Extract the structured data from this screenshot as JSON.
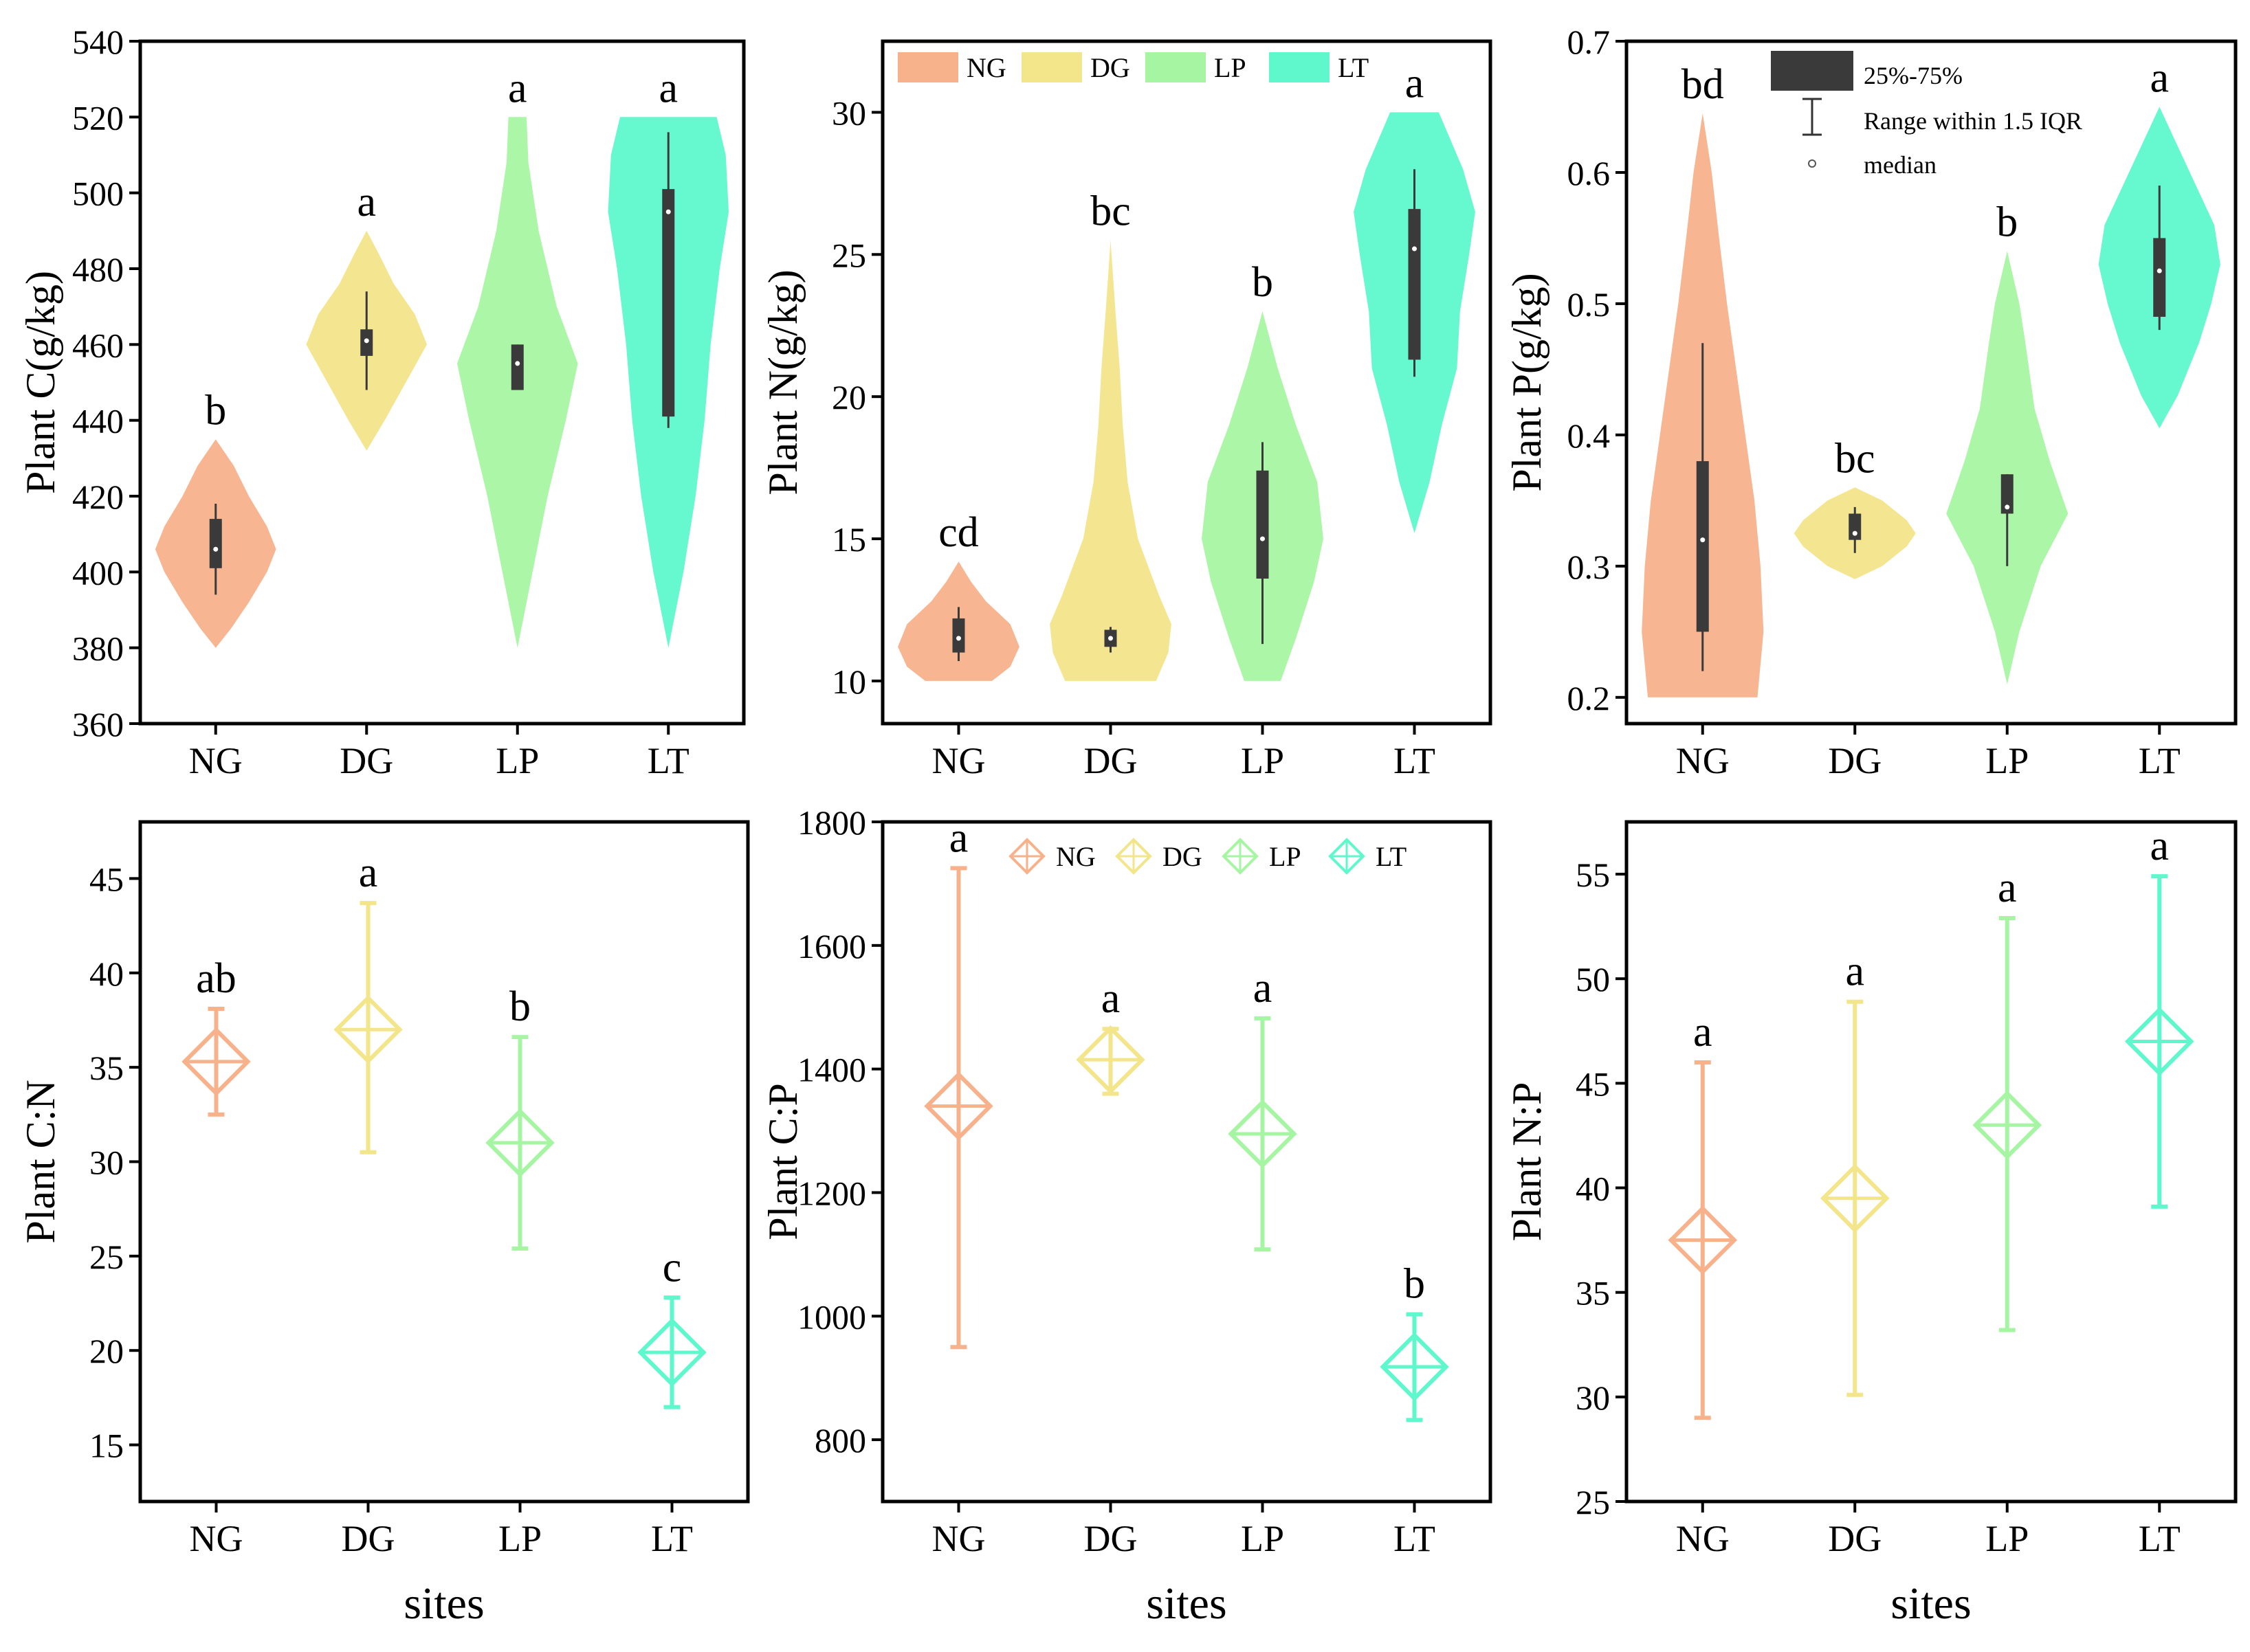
{
  "colors": {
    "NG": "#f7b28b",
    "DG": "#f3e58a",
    "LP": "#a6f5a2",
    "LT": "#5ef8cc",
    "box": "#3a3a3a"
  },
  "chart_data": [
    {
      "id": "plant-c",
      "type": "violin",
      "ylabel": "Plant C(g/kg)",
      "xlabel": "",
      "categories": [
        "NG",
        "DG",
        "LP",
        "LT"
      ],
      "ylim": [
        360,
        540
      ],
      "yticks": [
        360,
        380,
        400,
        420,
        440,
        460,
        480,
        500,
        520,
        540
      ],
      "series": [
        {
          "name": "NG",
          "min": 380,
          "max": 435,
          "q1": 401,
          "q3": 414,
          "median": 406,
          "whisker_low": 394,
          "whisker_high": 418,
          "letter": "b",
          "density": [
            [
              380,
              0
            ],
            [
              385,
              0.25
            ],
            [
              392,
              0.55
            ],
            [
              400,
              0.85
            ],
            [
              406,
              1
            ],
            [
              412,
              0.85
            ],
            [
              420,
              0.55
            ],
            [
              428,
              0.3
            ],
            [
              435,
              0
            ]
          ]
        },
        {
          "name": "DG",
          "min": 432,
          "max": 490,
          "q1": 457,
          "q3": 464,
          "median": 461,
          "whisker_low": 448,
          "whisker_high": 474,
          "letter": "a",
          "density": [
            [
              432,
              0
            ],
            [
              440,
              0.3
            ],
            [
              450,
              0.65
            ],
            [
              460,
              1
            ],
            [
              468,
              0.8
            ],
            [
              476,
              0.45
            ],
            [
              484,
              0.2
            ],
            [
              490,
              0
            ]
          ]
        },
        {
          "name": "LP",
          "min": 380,
          "max": 520,
          "q1": 448,
          "q3": 460,
          "median": 455,
          "whisker_low": 448,
          "whisker_high": 460,
          "letter": "a",
          "density": [
            [
              380,
              0
            ],
            [
              400,
              0.25
            ],
            [
              420,
              0.5
            ],
            [
              440,
              0.8
            ],
            [
              455,
              1
            ],
            [
              470,
              0.65
            ],
            [
              490,
              0.35
            ],
            [
              508,
              0.18
            ],
            [
              520,
              0.15
            ]
          ]
        },
        {
          "name": "LT",
          "min": 380,
          "max": 520,
          "q1": 441,
          "q3": 501,
          "median": 495,
          "whisker_low": 438,
          "whisker_high": 516,
          "letter": "a",
          "density": [
            [
              380,
              0
            ],
            [
              400,
              0.25
            ],
            [
              420,
              0.45
            ],
            [
              440,
              0.6
            ],
            [
              460,
              0.7
            ],
            [
              480,
              0.85
            ],
            [
              495,
              1
            ],
            [
              510,
              0.95
            ],
            [
              520,
              0.8
            ]
          ]
        }
      ]
    },
    {
      "id": "plant-n",
      "type": "violin",
      "ylabel": "Plant N(g/kg)",
      "xlabel": "",
      "categories": [
        "NG",
        "DG",
        "LP",
        "LT"
      ],
      "ylim": [
        8.5,
        32.5
      ],
      "yticks": [
        10,
        15,
        20,
        25,
        30
      ],
      "legend": [
        "NG",
        "DG",
        "LP",
        "LT"
      ],
      "series": [
        {
          "name": "NG",
          "min": 10,
          "max": 14.2,
          "q1": 11.0,
          "q3": 12.2,
          "median": 11.5,
          "whisker_low": 10.7,
          "whisker_high": 12.6,
          "letter": "cd",
          "density": [
            [
              10,
              0.55
            ],
            [
              10.5,
              0.85
            ],
            [
              11.2,
              1
            ],
            [
              12,
              0.85
            ],
            [
              12.8,
              0.45
            ],
            [
              13.5,
              0.2
            ],
            [
              14.2,
              0
            ]
          ]
        },
        {
          "name": "DG",
          "min": 10,
          "max": 25.5,
          "q1": 11.2,
          "q3": 11.8,
          "median": 11.5,
          "whisker_low": 11.0,
          "whisker_high": 11.9,
          "letter": "bc",
          "density": [
            [
              10,
              0.75
            ],
            [
              11,
              0.95
            ],
            [
              12,
              1
            ],
            [
              13,
              0.8
            ],
            [
              15,
              0.45
            ],
            [
              17,
              0.28
            ],
            [
              19,
              0.2
            ],
            [
              21,
              0.15
            ],
            [
              23,
              0.08
            ],
            [
              25.5,
              0
            ]
          ]
        },
        {
          "name": "LP",
          "min": 10,
          "max": 23,
          "q1": 13.6,
          "q3": 17.4,
          "median": 15,
          "whisker_low": 11.3,
          "whisker_high": 18.4,
          "letter": "b",
          "density": [
            [
              10,
              0.3
            ],
            [
              11.5,
              0.55
            ],
            [
              13.5,
              0.85
            ],
            [
              15,
              1
            ],
            [
              17,
              0.9
            ],
            [
              19,
              0.55
            ],
            [
              21,
              0.25
            ],
            [
              23,
              0
            ]
          ]
        },
        {
          "name": "LT",
          "min": 15.2,
          "max": 30,
          "q1": 21.3,
          "q3": 26.6,
          "median": 25.2,
          "whisker_low": 20.7,
          "whisker_high": 28.0,
          "letter": "a",
          "density": [
            [
              15.2,
              0
            ],
            [
              17,
              0.25
            ],
            [
              19,
              0.45
            ],
            [
              21,
              0.7
            ],
            [
              23,
              0.75
            ],
            [
              25,
              0.9
            ],
            [
              26.5,
              1
            ],
            [
              28,
              0.8
            ],
            [
              29.5,
              0.5
            ],
            [
              30,
              0.4
            ]
          ]
        }
      ]
    },
    {
      "id": "plant-p",
      "type": "violin",
      "ylabel": "Plant P(g/kg)",
      "xlabel": "",
      "categories": [
        "NG",
        "DG",
        "LP",
        "LT"
      ],
      "ylim": [
        0.18,
        0.7
      ],
      "yticks": [
        0.2,
        0.3,
        0.4,
        0.5,
        0.6,
        0.7
      ],
      "legend_items": [
        "25%-75%",
        "Range within 1.5 IQR",
        "median"
      ],
      "series": [
        {
          "name": "NG",
          "min": 0.2,
          "max": 0.645,
          "q1": 0.25,
          "q3": 0.38,
          "median": 0.32,
          "whisker_low": 0.22,
          "whisker_high": 0.47,
          "letter": "bd",
          "density": [
            [
              0.2,
              0.9
            ],
            [
              0.25,
              1
            ],
            [
              0.3,
              0.95
            ],
            [
              0.35,
              0.85
            ],
            [
              0.4,
              0.7
            ],
            [
              0.45,
              0.55
            ],
            [
              0.5,
              0.4
            ],
            [
              0.55,
              0.27
            ],
            [
              0.6,
              0.15
            ],
            [
              0.645,
              0
            ]
          ]
        },
        {
          "name": "DG",
          "min": 0.29,
          "max": 0.36,
          "q1": 0.32,
          "q3": 0.34,
          "median": 0.325,
          "whisker_low": 0.31,
          "whisker_high": 0.345,
          "letter": "bc",
          "density": [
            [
              0.29,
              0
            ],
            [
              0.3,
              0.45
            ],
            [
              0.315,
              0.85
            ],
            [
              0.325,
              1
            ],
            [
              0.335,
              0.85
            ],
            [
              0.35,
              0.45
            ],
            [
              0.36,
              0
            ]
          ]
        },
        {
          "name": "LP",
          "min": 0.21,
          "max": 0.54,
          "q1": 0.34,
          "q3": 0.37,
          "median": 0.345,
          "whisker_low": 0.3,
          "whisker_high": 0.37,
          "letter": "b",
          "density": [
            [
              0.21,
              0
            ],
            [
              0.25,
              0.2
            ],
            [
              0.3,
              0.55
            ],
            [
              0.34,
              1
            ],
            [
              0.38,
              0.7
            ],
            [
              0.42,
              0.45
            ],
            [
              0.47,
              0.3
            ],
            [
              0.5,
              0.2
            ],
            [
              0.54,
              0
            ]
          ]
        },
        {
          "name": "LT",
          "min": 0.405,
          "max": 0.65,
          "q1": 0.49,
          "q3": 0.55,
          "median": 0.525,
          "whisker_low": 0.48,
          "whisker_high": 0.59,
          "letter": "a",
          "density": [
            [
              0.405,
              0
            ],
            [
              0.43,
              0.3
            ],
            [
              0.47,
              0.65
            ],
            [
              0.5,
              0.85
            ],
            [
              0.53,
              1
            ],
            [
              0.56,
              0.9
            ],
            [
              0.59,
              0.6
            ],
            [
              0.62,
              0.3
            ],
            [
              0.65,
              0
            ]
          ]
        }
      ]
    },
    {
      "id": "plant-cn",
      "type": "mean-range",
      "ylabel": "Plant C:N",
      "xlabel": "sites",
      "categories": [
        "NG",
        "DG",
        "LP",
        "LT"
      ],
      "ylim": [
        12,
        48
      ],
      "yticks": [
        15,
        20,
        25,
        30,
        35,
        40,
        45
      ],
      "series": [
        {
          "name": "NG",
          "mean": 35.3,
          "low": 32.5,
          "high": 38.1,
          "letter": "ab"
        },
        {
          "name": "DG",
          "mean": 37.0,
          "low": 30.5,
          "high": 43.7,
          "letter": "a"
        },
        {
          "name": "LP",
          "mean": 31.0,
          "low": 25.4,
          "high": 36.6,
          "letter": "b"
        },
        {
          "name": "LT",
          "mean": 19.9,
          "low": 17.0,
          "high": 22.8,
          "letter": "c"
        }
      ]
    },
    {
      "id": "plant-cp",
      "type": "mean-range",
      "ylabel": "Plant C:P",
      "xlabel": "sites",
      "categories": [
        "NG",
        "DG",
        "LP",
        "LT"
      ],
      "ylim": [
        700,
        1800
      ],
      "yticks": [
        800,
        1000,
        1200,
        1400,
        1600,
        1800
      ],
      "legend": [
        "NG",
        "DG",
        "LP",
        "LT"
      ],
      "series": [
        {
          "name": "NG",
          "mean": 1340,
          "low": 950,
          "high": 1725,
          "letter": "a"
        },
        {
          "name": "DG",
          "mean": 1415,
          "low": 1360,
          "high": 1465,
          "letter": "a"
        },
        {
          "name": "LP",
          "mean": 1295,
          "low": 1108,
          "high": 1482,
          "letter": "a"
        },
        {
          "name": "LT",
          "mean": 918,
          "low": 832,
          "high": 1003,
          "letter": "b"
        }
      ]
    },
    {
      "id": "plant-np",
      "type": "mean-range",
      "ylabel": "Plant N:P",
      "xlabel": "sites",
      "categories": [
        "NG",
        "DG",
        "LP",
        "LT"
      ],
      "ylim": [
        25,
        57.5
      ],
      "yticks": [
        25,
        30,
        35,
        40,
        45,
        50,
        55
      ],
      "series": [
        {
          "name": "NG",
          "mean": 37.5,
          "low": 29.0,
          "high": 46.0,
          "letter": "a"
        },
        {
          "name": "DG",
          "mean": 39.5,
          "low": 30.1,
          "high": 48.9,
          "letter": "a"
        },
        {
          "name": "LP",
          "mean": 43.0,
          "low": 33.2,
          "high": 52.9,
          "letter": "a"
        },
        {
          "name": "LT",
          "mean": 47.0,
          "low": 39.1,
          "high": 54.9,
          "letter": "a"
        }
      ]
    }
  ]
}
